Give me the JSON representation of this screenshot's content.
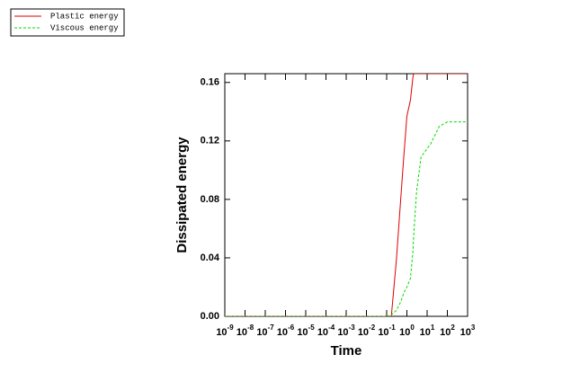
{
  "chart_data": {
    "type": "line",
    "x_label": "Time",
    "y_label": "Dissipated energy",
    "x": [
      1e-09,
      0.1,
      0.17,
      0.3,
      0.5,
      0.7,
      1,
      1.5,
      2,
      2.2,
      3,
      5,
      15,
      40,
      100,
      1000
    ],
    "series": [
      {
        "name": "Plastic energy",
        "color": "#e00000",
        "dash": "none",
        "values": [
          0,
          0,
          0,
          0.038,
          0.081,
          0.109,
          0.137,
          0.148,
          0.164,
          0.166,
          0.166,
          0.166,
          0.166,
          0.166,
          0.166,
          0.166
        ]
      },
      {
        "name": "Viscous energy",
        "color": "#00dd00",
        "dash": "3,2",
        "values": [
          0,
          0,
          0.001,
          0.004,
          0.01,
          0.016,
          0.02,
          0.026,
          0.045,
          0.057,
          0.085,
          0.109,
          0.118,
          0.13,
          0.133,
          0.133
        ]
      }
    ],
    "xscale": "log",
    "xlim": [
      1e-09,
      1000
    ],
    "xticks": [
      {
        "value": 1e-09,
        "label": "10-9"
      },
      {
        "value": 1e-08,
        "label": "10-8"
      },
      {
        "value": 1e-07,
        "label": "10-7"
      },
      {
        "value": 1e-06,
        "label": "10-6"
      },
      {
        "value": 1e-05,
        "label": "10-5"
      },
      {
        "value": 0.0001,
        "label": "10-4"
      },
      {
        "value": 0.001,
        "label": "10-3"
      },
      {
        "value": 0.01,
        "label": "10-2"
      },
      {
        "value": 0.1,
        "label": "10-1"
      },
      {
        "value": 1,
        "label": "100"
      },
      {
        "value": 10,
        "label": "101"
      },
      {
        "value": 100,
        "label": "102"
      },
      {
        "value": 1000,
        "label": "103"
      }
    ],
    "ylim": [
      0,
      0.166
    ],
    "yticks": [
      {
        "value": 0,
        "label": "0.00"
      },
      {
        "value": 0.04,
        "label": "0.04"
      },
      {
        "value": 0.08,
        "label": "0.08"
      },
      {
        "value": 0.12,
        "label": "0.12"
      },
      {
        "value": 0.16,
        "label": "0.16"
      }
    ],
    "grid": false,
    "legend": "top-left"
  }
}
